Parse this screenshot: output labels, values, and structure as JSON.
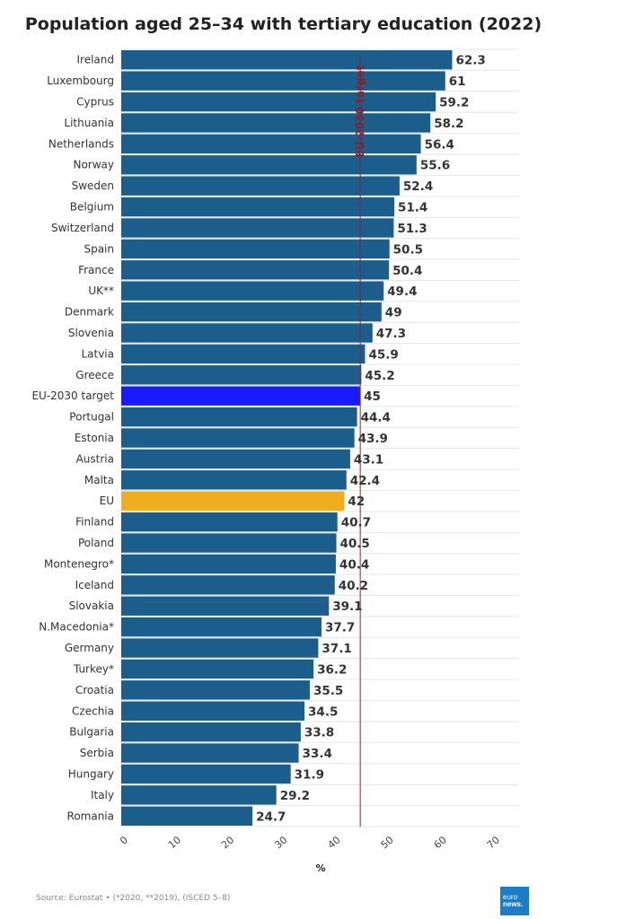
{
  "chart_data": {
    "type": "bar",
    "orientation": "horizontal",
    "title": "Population aged 25–34 with tertiary education (2022)",
    "xlabel": "%",
    "xlim": [
      0,
      70
    ],
    "xticks": [
      "0",
      "10",
      "20",
      "30",
      "40",
      "50",
      "60",
      "70"
    ],
    "grid": true,
    "reference_line": {
      "value": 45,
      "label": "EU-2030 target",
      "color": "#b3121c"
    },
    "colors": {
      "default": "#1b5e8c",
      "target": "#1a1aff",
      "eu": "#f0ad1e"
    },
    "categories": [
      "Ireland",
      "Luxembourg",
      "Cyprus",
      "Lithuania",
      "Netherlands",
      "Norway",
      "Sweden",
      "Belgium",
      "Switzerland",
      "Spain",
      "France",
      "UK**",
      "Denmark",
      "Slovenia",
      "Latvia",
      "Greece",
      "EU-2030 target",
      "Portugal",
      "Estonia",
      "Austria",
      "Malta",
      "EU",
      "Finland",
      "Poland",
      "Montenegro*",
      "Iceland",
      "Slovakia",
      "N.Macedonia*",
      "Germany",
      "Turkey*",
      "Croatia",
      "Czechia",
      "Bulgaria",
      "Serbia",
      "Hungary",
      "Italy",
      "Romania"
    ],
    "values": [
      62.3,
      61,
      59.2,
      58.2,
      56.4,
      55.6,
      52.4,
      51.4,
      51.3,
      50.5,
      50.4,
      49.4,
      49,
      47.3,
      45.9,
      45.2,
      45,
      44.4,
      43.9,
      43.1,
      42.4,
      42,
      40.7,
      40.5,
      40.4,
      40.2,
      39.1,
      37.7,
      37.1,
      36.2,
      35.5,
      34.5,
      33.8,
      33.4,
      31.9,
      29.2,
      24.7
    ],
    "value_labels": [
      "62.3",
      "61",
      "59.2",
      "58.2",
      "56.4",
      "55.6",
      "52.4",
      "51.4",
      "51.3",
      "50.5",
      "50.4",
      "49.4",
      "49",
      "47.3",
      "45.9",
      "45.2",
      "45",
      "44.4",
      "43.9",
      "43.1",
      "42.4",
      "42",
      "40.7",
      "40.5",
      "40.4",
      "40.2",
      "39.1",
      "37.7",
      "37.1",
      "36.2",
      "35.5",
      "34.5",
      "33.8",
      "33.4",
      "31.9",
      "29.2",
      "24.7"
    ],
    "highlight": {
      "EU-2030 target": "target",
      "EU": "eu"
    }
  },
  "footer": {
    "source": "Source: Eurostat • (*2020, **2019), (ISCED 5–8)",
    "logo_line1": "euro",
    "logo_line2": "news."
  },
  "icons": {
    "logo": "euronews-logo"
  }
}
